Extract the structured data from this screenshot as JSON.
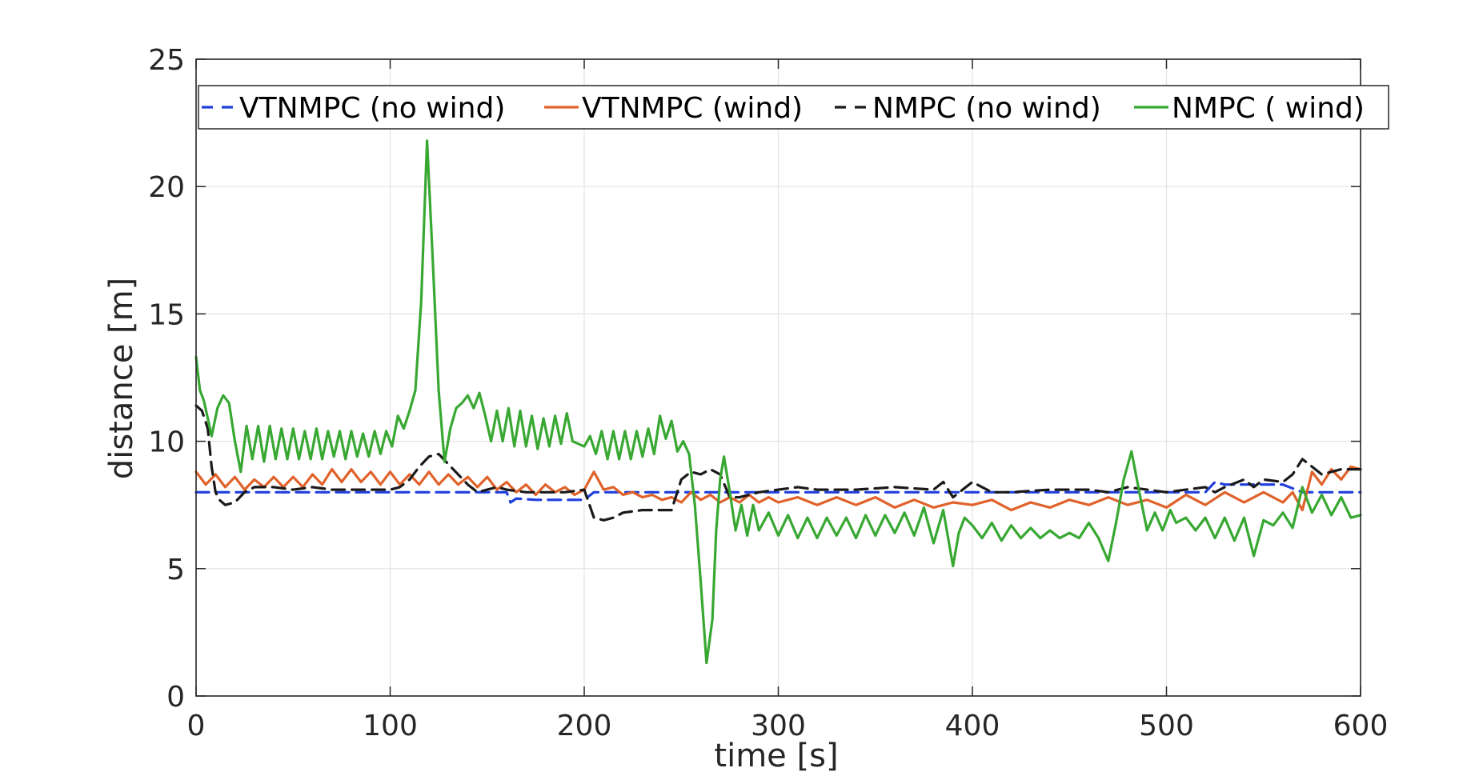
{
  "chart_data": {
    "type": "line",
    "title": "",
    "xlabel": "time [s]",
    "ylabel": "distance [m]",
    "xlim": [
      0,
      600
    ],
    "ylim": [
      0,
      25
    ],
    "xticks": [
      0,
      100,
      200,
      300,
      400,
      500,
      600
    ],
    "yticks": [
      0,
      5,
      10,
      15,
      20,
      25
    ],
    "grid": true,
    "legend_position": "top, horizontal",
    "series": [
      {
        "name": "VTNMPC (no wind)",
        "color": "#1f3fdc",
        "style": "dashed",
        "x": [
          0,
          150,
          160,
          162,
          165,
          175,
          200,
          205,
          210,
          300,
          400,
          450,
          500,
          520,
          525,
          530,
          540,
          560,
          570,
          575,
          600
        ],
        "y": [
          8.0,
          8.0,
          8.0,
          7.6,
          7.75,
          7.7,
          7.7,
          8.0,
          8.0,
          8.0,
          8.0,
          8.0,
          8.0,
          8.0,
          8.4,
          8.3,
          8.3,
          8.3,
          8.0,
          8.0,
          8.0
        ]
      },
      {
        "name": "VTNMPC (wind)",
        "color": "#e0622a",
        "style": "solid",
        "x": [
          0,
          5,
          10,
          15,
          20,
          25,
          30,
          35,
          40,
          45,
          50,
          55,
          60,
          65,
          70,
          75,
          80,
          85,
          90,
          95,
          100,
          105,
          110,
          115,
          120,
          125,
          130,
          135,
          140,
          145,
          150,
          155,
          160,
          165,
          170,
          175,
          180,
          185,
          190,
          195,
          200,
          205,
          210,
          215,
          220,
          225,
          230,
          235,
          240,
          245,
          250,
          255,
          260,
          265,
          270,
          275,
          280,
          285,
          290,
          295,
          300,
          310,
          320,
          330,
          340,
          350,
          360,
          370,
          380,
          390,
          400,
          410,
          420,
          430,
          440,
          450,
          460,
          470,
          480,
          490,
          500,
          510,
          520,
          530,
          540,
          550,
          560,
          565,
          570,
          575,
          580,
          585,
          590,
          595,
          600
        ],
        "y": [
          8.8,
          8.3,
          8.7,
          8.2,
          8.6,
          8.1,
          8.5,
          8.2,
          8.6,
          8.2,
          8.6,
          8.2,
          8.7,
          8.3,
          8.9,
          8.4,
          8.9,
          8.4,
          8.8,
          8.3,
          8.8,
          8.3,
          8.7,
          8.3,
          8.8,
          8.3,
          8.7,
          8.3,
          8.6,
          8.2,
          8.6,
          8.1,
          8.4,
          8.0,
          8.3,
          7.9,
          8.3,
          8.0,
          8.2,
          7.9,
          8.1,
          8.8,
          8.1,
          8.2,
          7.9,
          8.0,
          7.8,
          7.9,
          7.7,
          7.8,
          7.6,
          8.0,
          7.7,
          7.9,
          7.6,
          7.8,
          7.6,
          7.9,
          7.6,
          7.8,
          7.6,
          7.8,
          7.5,
          7.8,
          7.5,
          7.8,
          7.4,
          7.7,
          7.4,
          7.6,
          7.5,
          7.7,
          7.3,
          7.6,
          7.4,
          7.7,
          7.5,
          7.8,
          7.5,
          7.7,
          7.4,
          7.9,
          7.5,
          8.0,
          7.6,
          8.0,
          7.6,
          8.0,
          7.3,
          8.8,
          8.3,
          8.9,
          8.5,
          9.0,
          8.9
        ]
      },
      {
        "name": "NMPC (no wind)",
        "color": "#1a1a1a",
        "style": "dashed",
        "x": [
          0,
          3,
          6,
          8,
          10,
          12,
          15,
          20,
          25,
          30,
          40,
          50,
          60,
          70,
          80,
          90,
          100,
          105,
          110,
          115,
          120,
          125,
          130,
          135,
          140,
          145,
          150,
          155,
          160,
          170,
          180,
          190,
          200,
          205,
          210,
          215,
          220,
          230,
          240,
          245,
          250,
          255,
          260,
          265,
          270,
          275,
          280,
          290,
          300,
          310,
          320,
          340,
          360,
          380,
          385,
          390,
          400,
          405,
          410,
          420,
          440,
          460,
          470,
          480,
          490,
          500,
          510,
          520,
          525,
          530,
          540,
          545,
          550,
          560,
          565,
          570,
          575,
          580,
          590,
          600
        ],
        "y": [
          11.4,
          11.2,
          10.5,
          9.0,
          8.0,
          7.7,
          7.5,
          7.6,
          8.0,
          8.2,
          8.2,
          8.1,
          8.2,
          8.1,
          8.1,
          8.1,
          8.1,
          8.2,
          8.5,
          9.0,
          9.4,
          9.5,
          9.1,
          8.7,
          8.3,
          8.0,
          8.1,
          8.2,
          8.1,
          8.0,
          8.0,
          8.0,
          8.1,
          7.0,
          6.9,
          7.0,
          7.2,
          7.3,
          7.3,
          7.3,
          8.5,
          8.8,
          8.7,
          8.9,
          8.7,
          7.8,
          7.8,
          8.0,
          8.1,
          8.2,
          8.1,
          8.1,
          8.2,
          8.1,
          8.4,
          7.8,
          8.4,
          8.2,
          8.0,
          8.0,
          8.1,
          8.1,
          8.0,
          8.2,
          8.1,
          8.0,
          8.1,
          8.2,
          8.0,
          8.2,
          8.5,
          8.2,
          8.5,
          8.4,
          8.7,
          9.3,
          9.0,
          8.7,
          8.9,
          8.9
        ]
      },
      {
        "name": "NMPC ( wind)",
        "color": "#38a832",
        "style": "solid",
        "x": [
          0,
          2,
          4,
          6,
          8,
          11,
          14,
          17,
          20,
          23,
          26,
          29,
          32,
          35,
          38,
          41,
          44,
          47,
          50,
          53,
          56,
          59,
          62,
          65,
          68,
          71,
          74,
          77,
          80,
          83,
          86,
          89,
          92,
          95,
          98,
          101,
          104,
          107,
          110,
          113,
          116,
          119,
          122,
          125,
          128,
          131,
          134,
          137,
          140,
          143,
          146,
          149,
          152,
          155,
          158,
          161,
          164,
          167,
          170,
          173,
          176,
          179,
          182,
          185,
          188,
          191,
          194,
          197,
          200,
          203,
          206,
          209,
          212,
          215,
          218,
          221,
          224,
          227,
          230,
          233,
          236,
          239,
          242,
          245,
          248,
          251,
          254,
          257,
          260,
          263,
          266,
          268,
          270,
          272,
          275,
          278,
          281,
          284,
          287,
          290,
          295,
          300,
          305,
          310,
          315,
          320,
          325,
          330,
          335,
          340,
          345,
          350,
          355,
          360,
          365,
          370,
          375,
          380,
          385,
          390,
          393,
          396,
          400,
          405,
          410,
          415,
          420,
          425,
          430,
          435,
          440,
          445,
          450,
          455,
          460,
          465,
          470,
          474,
          478,
          482,
          486,
          490,
          494,
          498,
          502,
          505,
          510,
          515,
          520,
          525,
          530,
          535,
          540,
          545,
          550,
          555,
          560,
          565,
          570,
          575,
          580,
          585,
          590,
          595,
          600
        ],
        "y": [
          13.3,
          12.0,
          11.6,
          10.9,
          10.2,
          11.3,
          11.8,
          11.5,
          10.0,
          8.8,
          10.6,
          9.3,
          10.6,
          9.2,
          10.6,
          9.3,
          10.5,
          9.3,
          10.5,
          9.3,
          10.4,
          9.3,
          10.5,
          9.3,
          10.4,
          9.4,
          10.4,
          9.3,
          10.4,
          9.4,
          10.3,
          9.4,
          10.4,
          9.5,
          10.4,
          9.8,
          11.0,
          10.5,
          11.2,
          12.0,
          15.5,
          21.8,
          17.0,
          12.0,
          9.2,
          10.5,
          11.3,
          11.5,
          11.8,
          11.3,
          11.9,
          11.0,
          10.0,
          11.2,
          10.0,
          11.3,
          9.8,
          11.2,
          9.8,
          11.0,
          9.7,
          10.9,
          9.8,
          11.0,
          9.9,
          11.1,
          10.0,
          9.9,
          9.8,
          10.2,
          9.5,
          10.4,
          9.3,
          10.4,
          9.3,
          10.4,
          9.3,
          10.4,
          9.4,
          10.5,
          9.5,
          11.0,
          10.1,
          10.8,
          9.6,
          10.0,
          9.5,
          7.5,
          4.5,
          1.3,
          3.0,
          6.5,
          8.5,
          9.4,
          8.0,
          6.5,
          7.5,
          6.3,
          7.5,
          6.5,
          7.2,
          6.3,
          7.1,
          6.2,
          7.0,
          6.2,
          7.0,
          6.3,
          7.0,
          6.2,
          7.1,
          6.3,
          7.1,
          6.4,
          7.2,
          6.3,
          7.4,
          6.0,
          7.3,
          5.1,
          6.4,
          7.0,
          6.7,
          6.2,
          6.8,
          6.1,
          6.7,
          6.2,
          6.6,
          6.2,
          6.5,
          6.2,
          6.4,
          6.2,
          6.8,
          6.2,
          5.3,
          6.8,
          8.5,
          9.6,
          8.0,
          6.5,
          7.2,
          6.5,
          7.3,
          6.8,
          7.0,
          6.5,
          7.0,
          6.2,
          7.0,
          6.1,
          7.0,
          5.5,
          6.9,
          6.7,
          7.2,
          6.6,
          8.2,
          7.2,
          7.9,
          7.1,
          7.8,
          7.0,
          7.1
        ]
      }
    ]
  }
}
